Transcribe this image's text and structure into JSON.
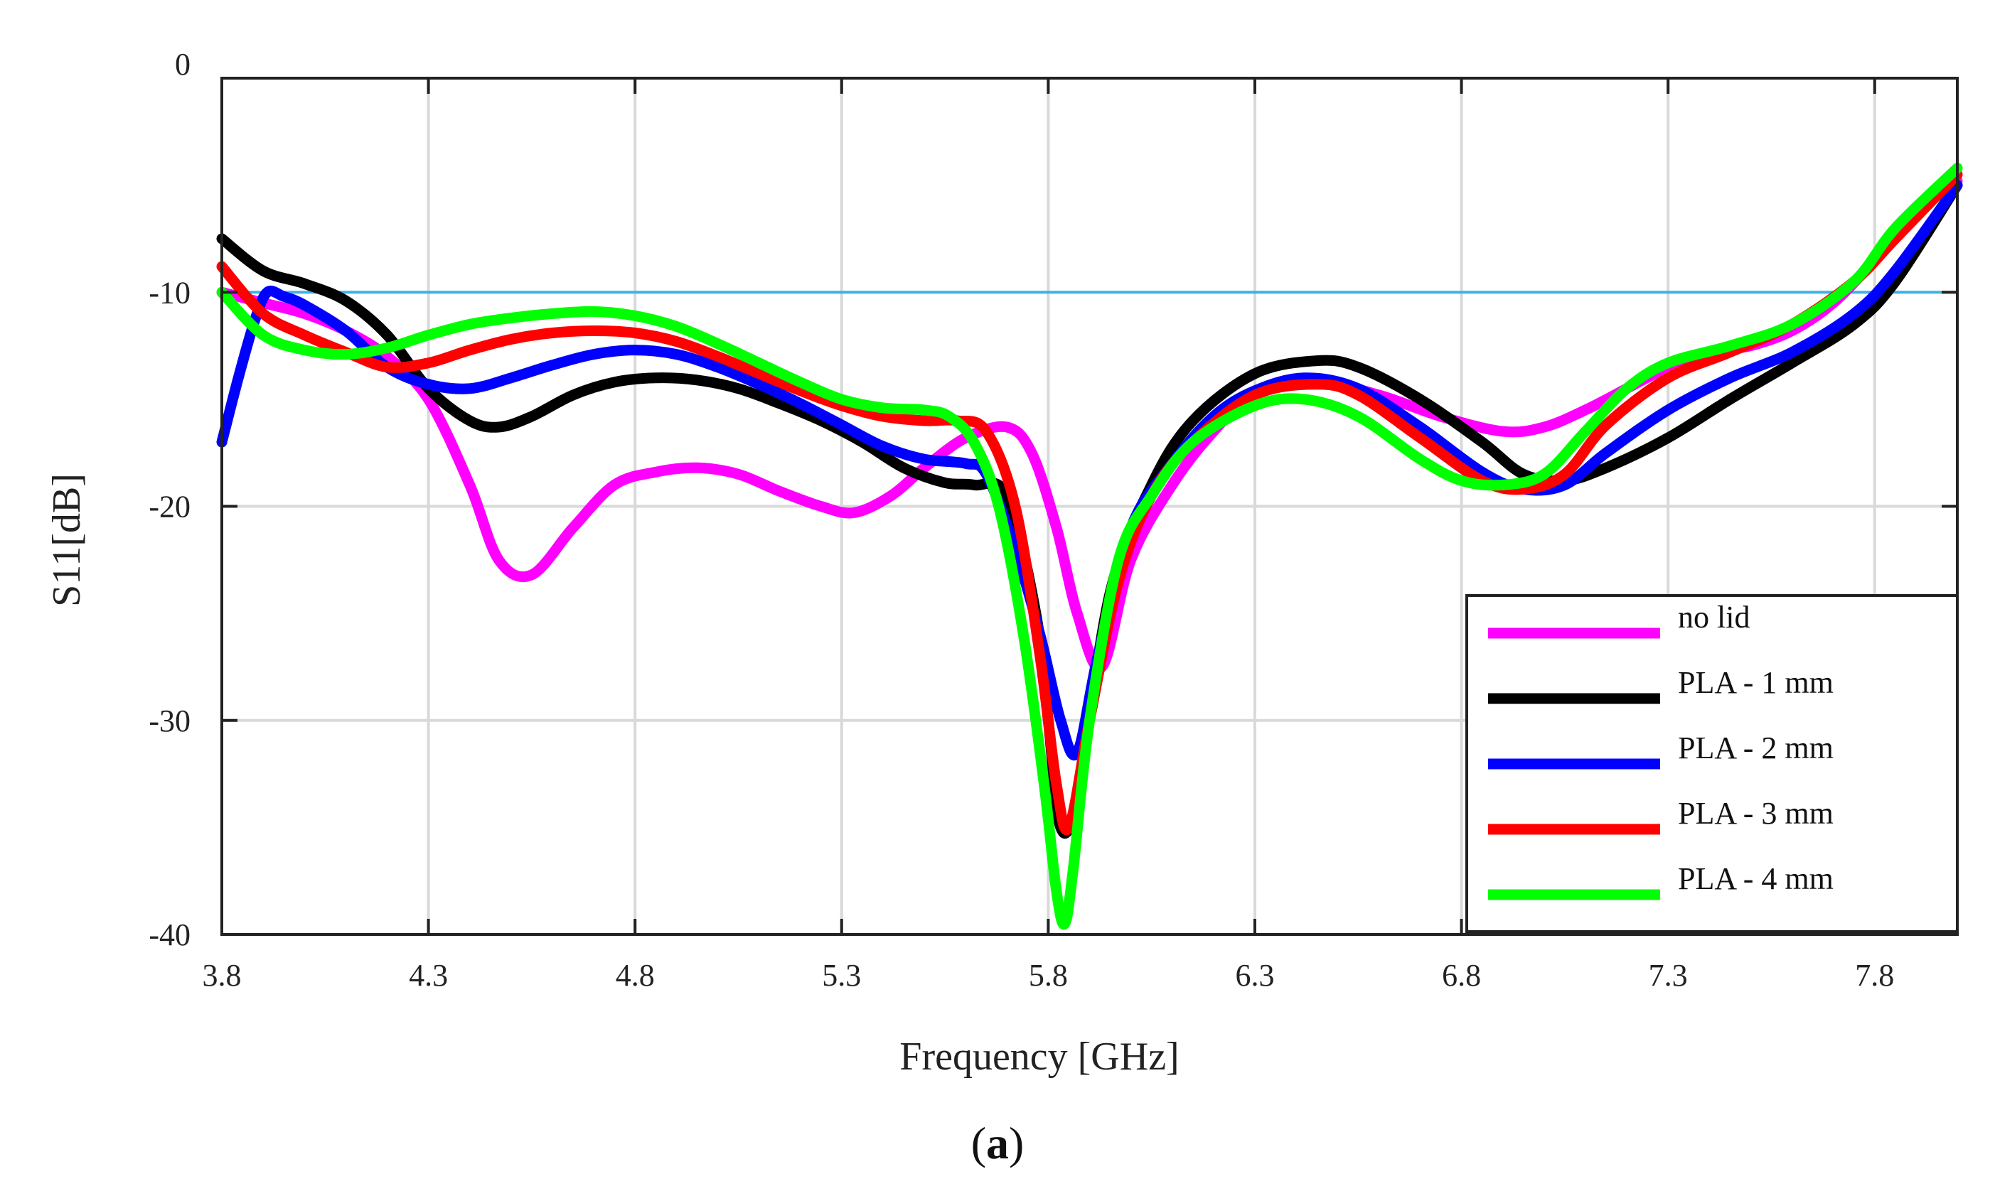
{
  "caption": {
    "open": "(",
    "letter": "a",
    "close": ")"
  },
  "chart_data": {
    "type": "line",
    "title": "",
    "xlabel": "Frequency [GHz]",
    "ylabel": "S11[dB]",
    "xlim": [
      3.8,
      8.0
    ],
    "ylim": [
      -40,
      0
    ],
    "xticks": [
      3.8,
      4.3,
      4.8,
      5.3,
      5.8,
      6.3,
      6.8,
      7.3,
      7.8
    ],
    "xtick_labels": [
      "3.8",
      "4.3",
      "4.8",
      "5.3",
      "5.8",
      "6.3",
      "6.8",
      "7.3",
      "7.8"
    ],
    "yticks": [
      0,
      -10,
      -20,
      -30,
      -40
    ],
    "ytick_labels": [
      "0",
      "-10",
      "-20",
      "-30",
      "-40"
    ],
    "grid": true,
    "legend_position": "bottom-right",
    "reference_line": {
      "y": -10,
      "color": "#3db3e6"
    },
    "series": [
      {
        "name": "no lid",
        "color": "#ff00ff",
        "x": [
          3.8,
          3.9,
          4.0,
          4.1,
          4.2,
          4.3,
          4.4,
          4.47,
          4.55,
          4.65,
          4.75,
          4.85,
          4.95,
          5.05,
          5.15,
          5.25,
          5.33,
          5.42,
          5.5,
          5.6,
          5.7,
          5.76,
          5.82,
          5.87,
          5.93,
          6.0,
          6.1,
          6.2,
          6.3,
          6.45,
          6.6,
          6.75,
          6.9,
          7.0,
          7.1,
          7.2,
          7.3,
          7.4,
          7.5,
          7.6,
          7.7,
          7.8,
          7.9,
          8.0
        ],
        "y": [
          -10.0,
          -10.5,
          -11.0,
          -11.8,
          -13.0,
          -15.0,
          -19.0,
          -22.5,
          -23.2,
          -21.0,
          -19.0,
          -18.4,
          -18.2,
          -18.5,
          -19.3,
          -20.0,
          -20.3,
          -19.5,
          -18.2,
          -16.8,
          -16.3,
          -17.5,
          -21.0,
          -25.0,
          -27.5,
          -22.5,
          -19.0,
          -16.5,
          -14.8,
          -14.2,
          -14.8,
          -15.8,
          -16.5,
          -16.3,
          -15.5,
          -14.5,
          -13.5,
          -12.8,
          -12.5,
          -11.8,
          -10.5,
          -8.5,
          -6.3,
          -4.8
        ]
      },
      {
        "name": "PLA - 1 mm",
        "color": "#000000",
        "x": [
          3.8,
          3.9,
          4.0,
          4.1,
          4.2,
          4.3,
          4.4,
          4.47,
          4.55,
          4.65,
          4.75,
          4.85,
          4.95,
          5.05,
          5.15,
          5.25,
          5.35,
          5.45,
          5.55,
          5.62,
          5.7,
          5.77,
          5.8,
          5.83,
          5.87,
          5.95,
          6.05,
          6.15,
          6.3,
          6.45,
          6.55,
          6.7,
          6.85,
          6.95,
          7.05,
          7.15,
          7.3,
          7.45,
          7.6,
          7.75,
          7.85,
          8.0
        ],
        "y": [
          -7.5,
          -9.0,
          -9.6,
          -10.4,
          -12.0,
          -14.5,
          -16.0,
          -16.3,
          -15.8,
          -14.8,
          -14.2,
          -14.0,
          -14.1,
          -14.5,
          -15.2,
          -16.0,
          -17.0,
          -18.2,
          -18.9,
          -19.0,
          -19.5,
          -25.0,
          -30.0,
          -35.0,
          -33.5,
          -24.0,
          -19.0,
          -16.0,
          -13.8,
          -13.2,
          -13.5,
          -15.0,
          -17.0,
          -18.5,
          -18.8,
          -18.2,
          -16.8,
          -15.0,
          -13.3,
          -11.5,
          -9.5,
          -5.0
        ]
      },
      {
        "name": "PLA - 2 mm",
        "color": "#0000ff",
        "x": [
          3.8,
          3.84,
          3.88,
          3.91,
          3.95,
          4.0,
          4.1,
          4.2,
          4.3,
          4.4,
          4.5,
          4.6,
          4.7,
          4.8,
          4.9,
          5.0,
          5.1,
          5.2,
          5.3,
          5.4,
          5.5,
          5.6,
          5.65,
          5.72,
          5.78,
          5.83,
          5.87,
          5.92,
          6.0,
          6.1,
          6.2,
          6.3,
          6.42,
          6.55,
          6.7,
          6.85,
          6.95,
          7.05,
          7.15,
          7.3,
          7.45,
          7.6,
          7.75,
          7.85,
          8.0
        ],
        "y": [
          -17.0,
          -14.0,
          -11.3,
          -10.0,
          -10.2,
          -10.6,
          -11.8,
          -13.5,
          -14.3,
          -14.5,
          -14.0,
          -13.4,
          -12.9,
          -12.7,
          -12.9,
          -13.5,
          -14.3,
          -15.2,
          -16.2,
          -17.2,
          -17.8,
          -18.0,
          -18.5,
          -22.0,
          -26.0,
          -30.0,
          -31.5,
          -27.0,
          -21.0,
          -18.0,
          -15.8,
          -14.6,
          -14.0,
          -14.5,
          -16.3,
          -18.4,
          -19.2,
          -19.0,
          -17.5,
          -15.5,
          -14.0,
          -12.8,
          -11.0,
          -9.0,
          -5.0
        ]
      },
      {
        "name": "PLA - 3 mm",
        "color": "#ff0000",
        "x": [
          3.8,
          3.9,
          4.0,
          4.1,
          4.2,
          4.3,
          4.4,
          4.5,
          4.6,
          4.7,
          4.8,
          4.9,
          5.0,
          5.1,
          5.2,
          5.3,
          5.4,
          5.5,
          5.58,
          5.65,
          5.72,
          5.78,
          5.82,
          5.85,
          5.9,
          5.97,
          6.05,
          6.15,
          6.3,
          6.45,
          6.55,
          6.7,
          6.85,
          6.95,
          7.05,
          7.15,
          7.3,
          7.45,
          7.6,
          7.75,
          7.85,
          8.0
        ],
        "y": [
          -8.8,
          -11.0,
          -12.0,
          -12.8,
          -13.5,
          -13.3,
          -12.7,
          -12.2,
          -11.9,
          -11.8,
          -11.9,
          -12.3,
          -13.0,
          -13.8,
          -14.6,
          -15.3,
          -15.8,
          -16.0,
          -16.0,
          -16.5,
          -20.0,
          -27.0,
          -33.0,
          -35.0,
          -30.0,
          -23.5,
          -19.5,
          -17.0,
          -14.8,
          -14.3,
          -14.8,
          -16.8,
          -18.8,
          -19.2,
          -18.5,
          -16.2,
          -14.0,
          -12.8,
          -11.5,
          -9.5,
          -7.5,
          -4.5
        ]
      },
      {
        "name": "PLA - 4 mm",
        "color": "#00ff00",
        "x": [
          3.8,
          3.9,
          4.0,
          4.1,
          4.2,
          4.3,
          4.4,
          4.5,
          4.6,
          4.7,
          4.8,
          4.9,
          5.0,
          5.1,
          5.2,
          5.3,
          5.4,
          5.5,
          5.56,
          5.62,
          5.68,
          5.74,
          5.79,
          5.82,
          5.84,
          5.86,
          5.9,
          5.97,
          6.05,
          6.15,
          6.3,
          6.42,
          6.55,
          6.7,
          6.8,
          6.9,
          7.0,
          7.1,
          7.2,
          7.3,
          7.45,
          7.6,
          7.75,
          7.85,
          8.0
        ],
        "y": [
          -10.0,
          -12.0,
          -12.7,
          -12.9,
          -12.6,
          -12.0,
          -11.5,
          -11.2,
          -11.0,
          -10.9,
          -11.1,
          -11.6,
          -12.4,
          -13.3,
          -14.2,
          -15.0,
          -15.4,
          -15.5,
          -15.8,
          -17.0,
          -20.0,
          -26.0,
          -33.0,
          -38.0,
          -39.5,
          -37.0,
          -30.0,
          -22.5,
          -19.5,
          -17.0,
          -15.3,
          -15.0,
          -15.8,
          -17.8,
          -18.8,
          -19.0,
          -18.5,
          -16.5,
          -14.5,
          -13.3,
          -12.5,
          -11.5,
          -9.5,
          -7.0,
          -4.2
        ]
      }
    ]
  }
}
